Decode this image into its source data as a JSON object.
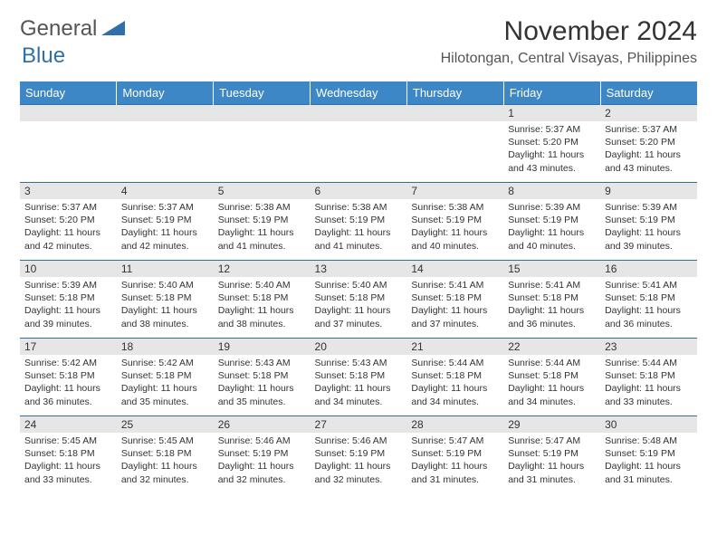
{
  "logo": {
    "text1": "General",
    "text2": "Blue",
    "shape_color": "#2f6fab"
  },
  "title": "November 2024",
  "location": "Hilotongan, Central Visayas, Philippines",
  "colors": {
    "header_bg": "#3d87c7",
    "header_text": "#ffffff",
    "row_border": "#2f6fab",
    "daynum_bg": "#e6e6e6",
    "body_text": "#333333",
    "background": "#ffffff"
  },
  "typography": {
    "title_fontsize": 30,
    "location_fontsize": 16,
    "header_fontsize": 13,
    "daynum_fontsize": 12,
    "info_fontsize": 10.5
  },
  "day_headers": [
    "Sunday",
    "Monday",
    "Tuesday",
    "Wednesday",
    "Thursday",
    "Friday",
    "Saturday"
  ],
  "weeks": [
    [
      null,
      null,
      null,
      null,
      null,
      {
        "d": "1",
        "sr": "5:37 AM",
        "ss": "5:20 PM",
        "dl": "11 hours and 43 minutes."
      },
      {
        "d": "2",
        "sr": "5:37 AM",
        "ss": "5:20 PM",
        "dl": "11 hours and 43 minutes."
      }
    ],
    [
      {
        "d": "3",
        "sr": "5:37 AM",
        "ss": "5:20 PM",
        "dl": "11 hours and 42 minutes."
      },
      {
        "d": "4",
        "sr": "5:37 AM",
        "ss": "5:19 PM",
        "dl": "11 hours and 42 minutes."
      },
      {
        "d": "5",
        "sr": "5:38 AM",
        "ss": "5:19 PM",
        "dl": "11 hours and 41 minutes."
      },
      {
        "d": "6",
        "sr": "5:38 AM",
        "ss": "5:19 PM",
        "dl": "11 hours and 41 minutes."
      },
      {
        "d": "7",
        "sr": "5:38 AM",
        "ss": "5:19 PM",
        "dl": "11 hours and 40 minutes."
      },
      {
        "d": "8",
        "sr": "5:39 AM",
        "ss": "5:19 PM",
        "dl": "11 hours and 40 minutes."
      },
      {
        "d": "9",
        "sr": "5:39 AM",
        "ss": "5:19 PM",
        "dl": "11 hours and 39 minutes."
      }
    ],
    [
      {
        "d": "10",
        "sr": "5:39 AM",
        "ss": "5:18 PM",
        "dl": "11 hours and 39 minutes."
      },
      {
        "d": "11",
        "sr": "5:40 AM",
        "ss": "5:18 PM",
        "dl": "11 hours and 38 minutes."
      },
      {
        "d": "12",
        "sr": "5:40 AM",
        "ss": "5:18 PM",
        "dl": "11 hours and 38 minutes."
      },
      {
        "d": "13",
        "sr": "5:40 AM",
        "ss": "5:18 PM",
        "dl": "11 hours and 37 minutes."
      },
      {
        "d": "14",
        "sr": "5:41 AM",
        "ss": "5:18 PM",
        "dl": "11 hours and 37 minutes."
      },
      {
        "d": "15",
        "sr": "5:41 AM",
        "ss": "5:18 PM",
        "dl": "11 hours and 36 minutes."
      },
      {
        "d": "16",
        "sr": "5:41 AM",
        "ss": "5:18 PM",
        "dl": "11 hours and 36 minutes."
      }
    ],
    [
      {
        "d": "17",
        "sr": "5:42 AM",
        "ss": "5:18 PM",
        "dl": "11 hours and 36 minutes."
      },
      {
        "d": "18",
        "sr": "5:42 AM",
        "ss": "5:18 PM",
        "dl": "11 hours and 35 minutes."
      },
      {
        "d": "19",
        "sr": "5:43 AM",
        "ss": "5:18 PM",
        "dl": "11 hours and 35 minutes."
      },
      {
        "d": "20",
        "sr": "5:43 AM",
        "ss": "5:18 PM",
        "dl": "11 hours and 34 minutes."
      },
      {
        "d": "21",
        "sr": "5:44 AM",
        "ss": "5:18 PM",
        "dl": "11 hours and 34 minutes."
      },
      {
        "d": "22",
        "sr": "5:44 AM",
        "ss": "5:18 PM",
        "dl": "11 hours and 34 minutes."
      },
      {
        "d": "23",
        "sr": "5:44 AM",
        "ss": "5:18 PM",
        "dl": "11 hours and 33 minutes."
      }
    ],
    [
      {
        "d": "24",
        "sr": "5:45 AM",
        "ss": "5:18 PM",
        "dl": "11 hours and 33 minutes."
      },
      {
        "d": "25",
        "sr": "5:45 AM",
        "ss": "5:18 PM",
        "dl": "11 hours and 32 minutes."
      },
      {
        "d": "26",
        "sr": "5:46 AM",
        "ss": "5:19 PM",
        "dl": "11 hours and 32 minutes."
      },
      {
        "d": "27",
        "sr": "5:46 AM",
        "ss": "5:19 PM",
        "dl": "11 hours and 32 minutes."
      },
      {
        "d": "28",
        "sr": "5:47 AM",
        "ss": "5:19 PM",
        "dl": "11 hours and 31 minutes."
      },
      {
        "d": "29",
        "sr": "5:47 AM",
        "ss": "5:19 PM",
        "dl": "11 hours and 31 minutes."
      },
      {
        "d": "30",
        "sr": "5:48 AM",
        "ss": "5:19 PM",
        "dl": "11 hours and 31 minutes."
      }
    ]
  ],
  "labels": {
    "sunrise": "Sunrise:",
    "sunset": "Sunset:",
    "daylight": "Daylight:"
  }
}
